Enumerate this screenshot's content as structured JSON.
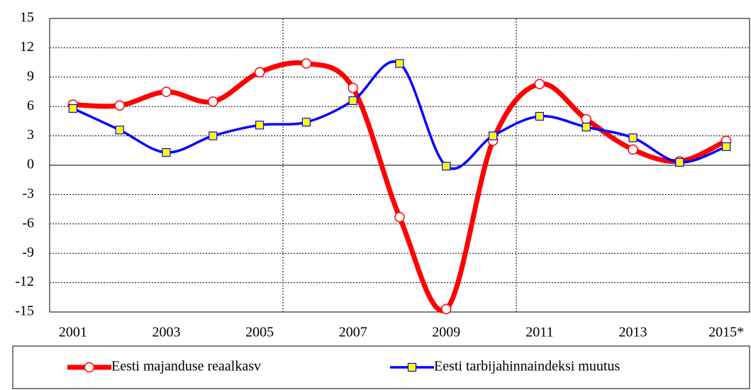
{
  "chart_data": {
    "type": "line",
    "categories": [
      "2001",
      null,
      "2003",
      null,
      "2005",
      null,
      "2007",
      null,
      "2009",
      null,
      "2011",
      null,
      "2013",
      null,
      "2015*"
    ],
    "series": [
      {
        "name": "Eesti majanduse reaalkasv",
        "color": "#ff0000",
        "marker": "circle",
        "values": [
          6.2,
          6.1,
          7.5,
          6.5,
          9.5,
          10.4,
          7.9,
          -5.3,
          -14.7,
          2.5,
          8.3,
          4.7,
          1.6,
          0.4,
          2.5
        ]
      },
      {
        "name": "Eesti tarbijahinnaindeksi muutus",
        "color": "#0000ff",
        "marker": "square",
        "values": [
          5.8,
          3.6,
          1.3,
          3.0,
          4.1,
          4.4,
          6.6,
          10.4,
          -0.1,
          3.0,
          5.0,
          3.9,
          2.8,
          0.3,
          1.9
        ]
      }
    ],
    "ylim": [
      -15,
      15
    ],
    "yticks": [
      -15,
      -12,
      -9,
      -6,
      -3,
      0,
      3,
      6,
      9,
      12,
      15
    ],
    "grid": true,
    "legend": "bottom"
  }
}
